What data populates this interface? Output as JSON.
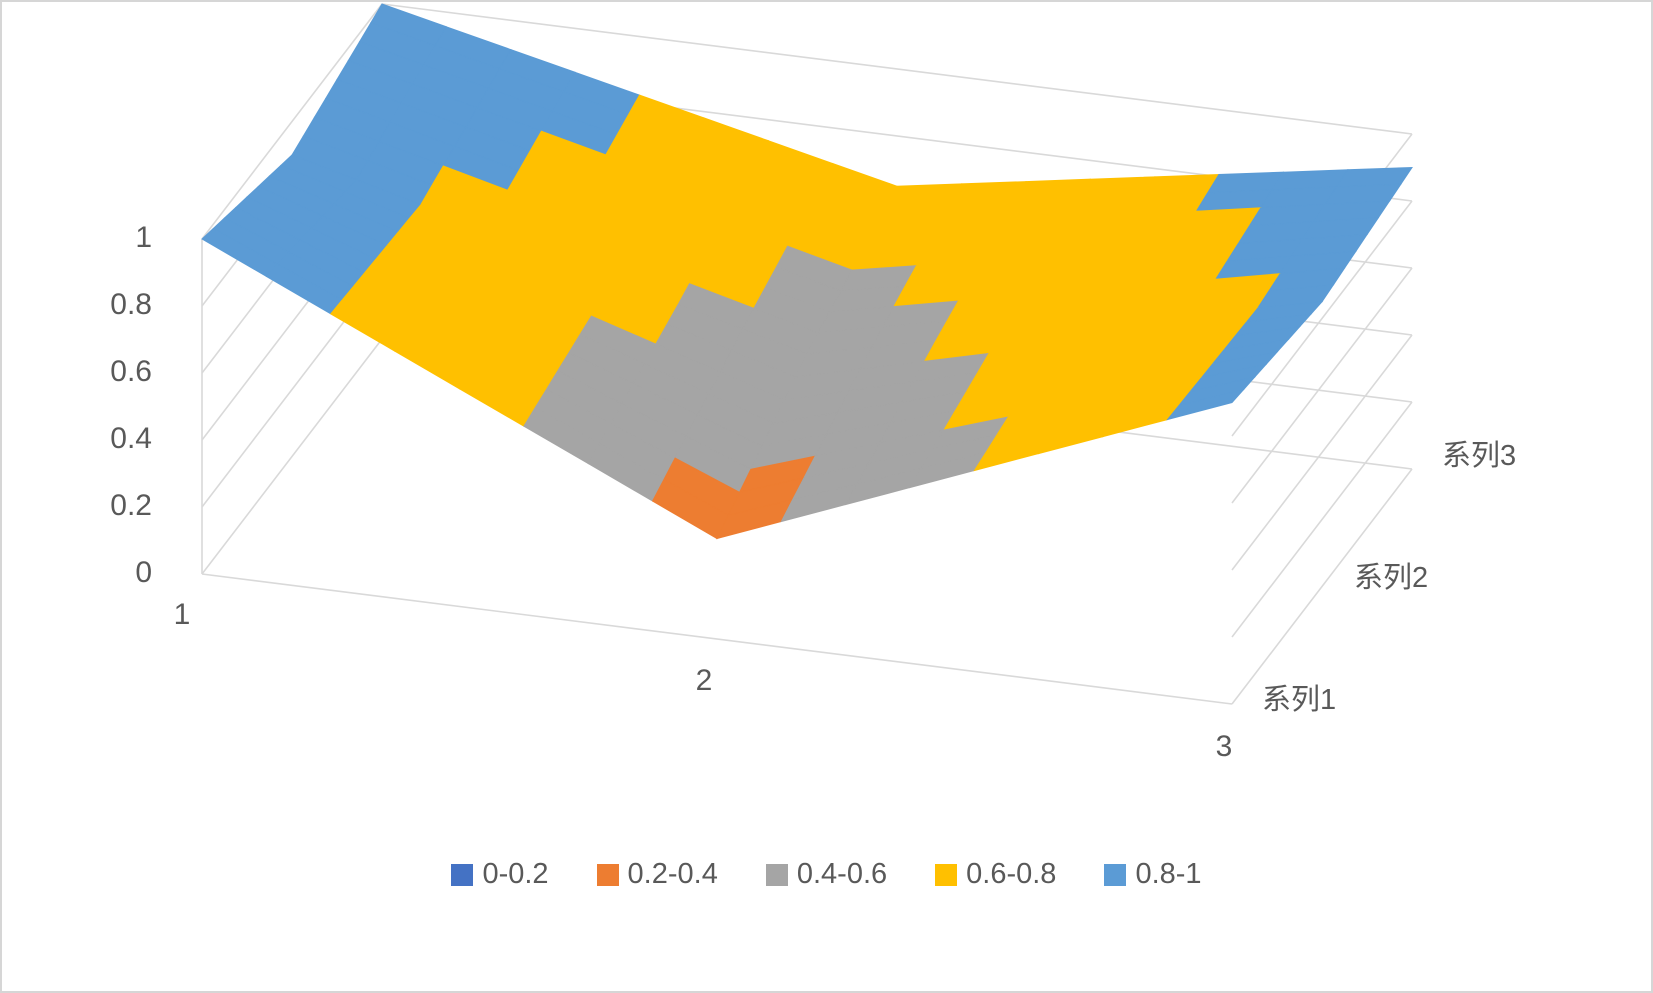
{
  "chart_data": {
    "type": "surface",
    "title": "",
    "subtitle": "",
    "categories": [
      "1",
      "2",
      "3"
    ],
    "series": [
      {
        "name": "系列1",
        "values": [
          1.0,
          0.3,
          0.9
        ]
      },
      {
        "name": "系列2",
        "values": [
          0.9,
          0.5,
          0.85
        ]
      },
      {
        "name": "系列3",
        "values": [
          1.0,
          0.65,
          0.9
        ]
      }
    ],
    "value_axis": {
      "ticks": [
        "0",
        "0.2",
        "0.4",
        "0.6",
        "0.8",
        "1"
      ],
      "min": 0,
      "max": 1,
      "step": 0.2
    },
    "bands": [
      {
        "label": "0-0.2",
        "max": 0.2,
        "color": "#4472C4"
      },
      {
        "label": "0.2-0.4",
        "max": 0.4,
        "color": "#ED7D31"
      },
      {
        "label": "0.4-0.6",
        "max": 0.6,
        "color": "#A5A5A5"
      },
      {
        "label": "0.6-0.8",
        "max": 0.8,
        "color": "#FFC000"
      },
      {
        "label": "0.8-1",
        "max": 1.0,
        "color": "#5B9BD5"
      }
    ],
    "legend_position": "bottom",
    "gridlines": true,
    "gridline_color": "#D9D9D9",
    "text_color": "#595959",
    "background_color": "#FFFFFF"
  }
}
